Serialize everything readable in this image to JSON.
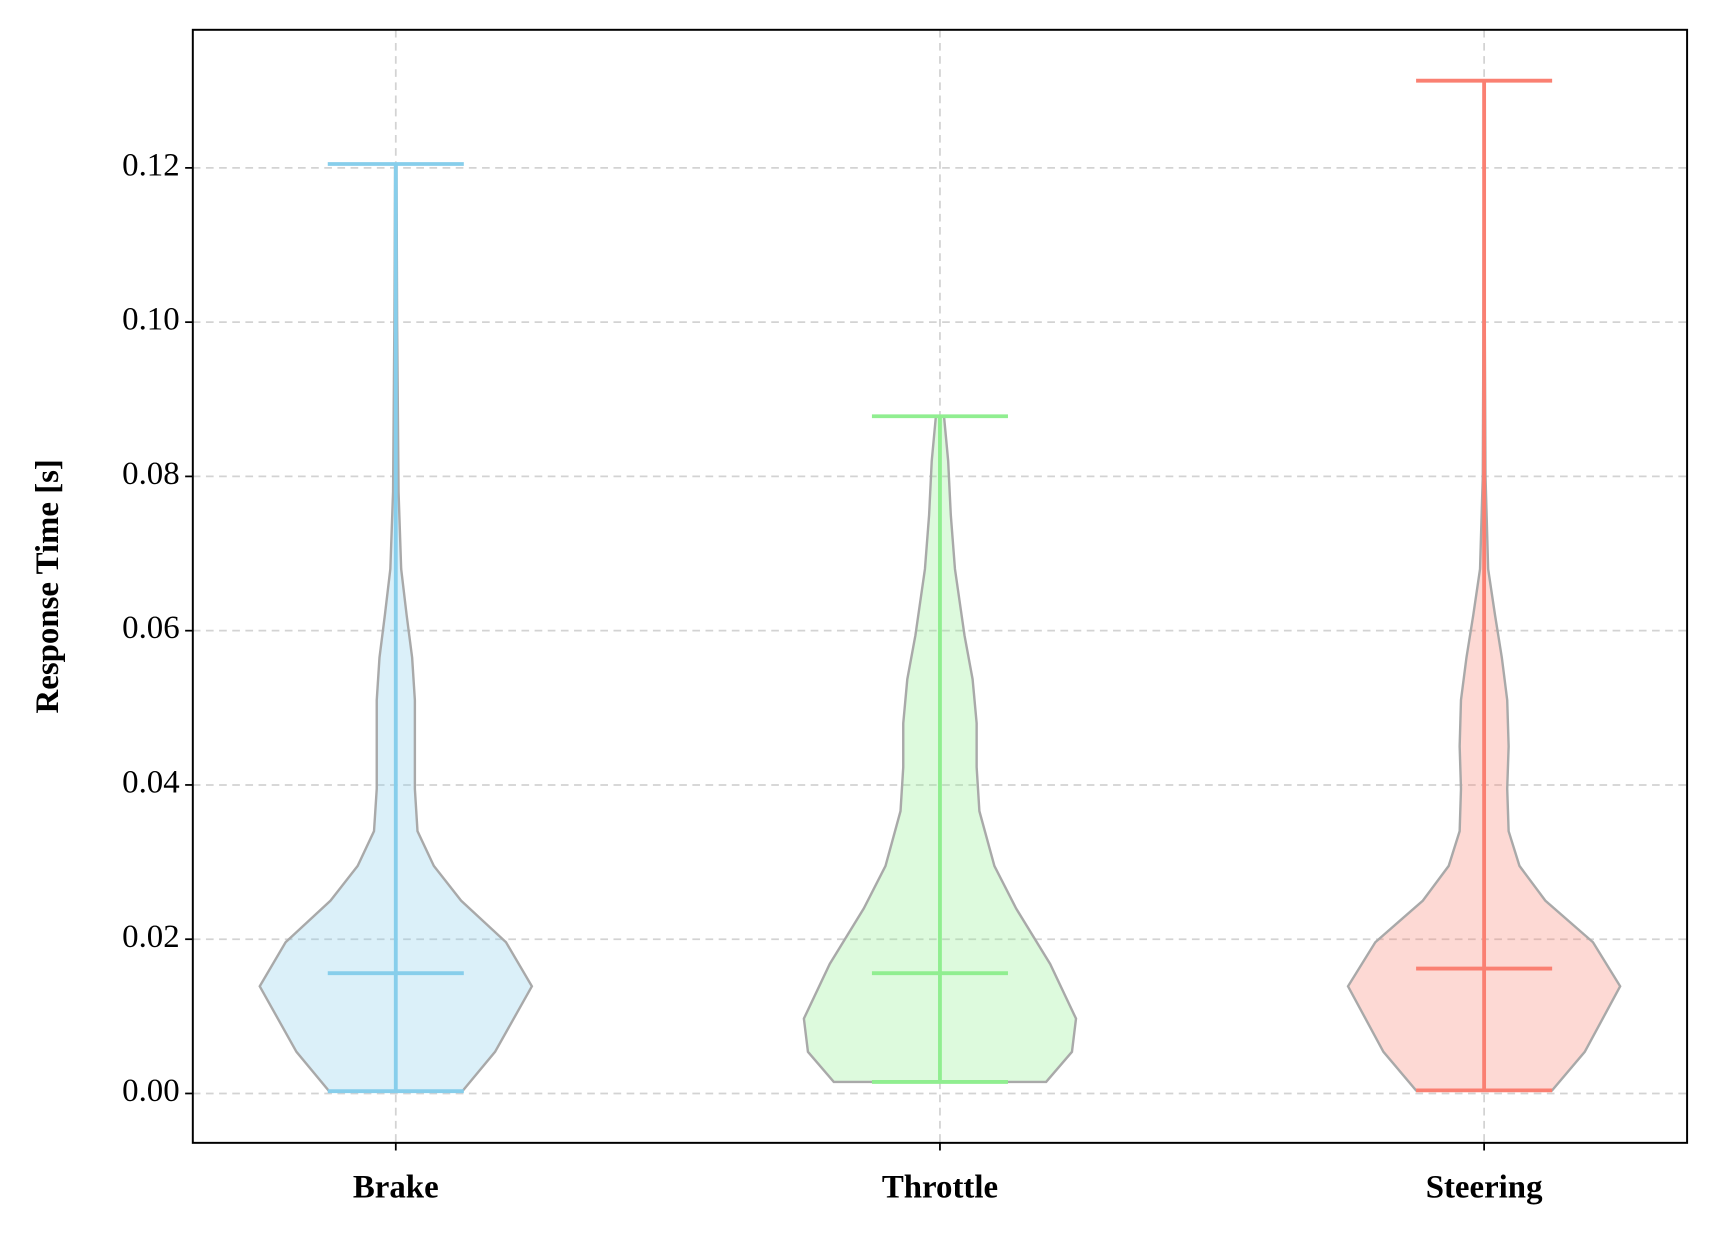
{
  "chart_data": {
    "type": "violin",
    "ylabel": "Response Time [s]",
    "categories": [
      "Brake",
      "Throttle",
      "Steering"
    ],
    "series": [
      {
        "name": "Brake",
        "color": "#87ceeb",
        "min": 0.0003,
        "median": 0.0156,
        "max": 0.1205,
        "density_y": [
          0.0003,
          0.0054,
          0.0139,
          0.0196,
          0.025,
          0.0295,
          0.034,
          0.0395,
          0.045,
          0.051,
          0.0565,
          0.062,
          0.068,
          0.078,
          0.1,
          0.1205
        ],
        "density_width": [
          0.49,
          0.73,
          1.0,
          0.81,
          0.48,
          0.28,
          0.16,
          0.14,
          0.14,
          0.14,
          0.12,
          0.08,
          0.04,
          0.02,
          0.01,
          0.005
        ]
      },
      {
        "name": "Throttle",
        "color": "#90ee90",
        "min": 0.0015,
        "median": 0.0156,
        "max": 0.0878,
        "density_y": [
          0.0015,
          0.0054,
          0.0097,
          0.0168,
          0.024,
          0.0295,
          0.0366,
          0.0423,
          0.048,
          0.0537,
          0.0594,
          0.068,
          0.075,
          0.082,
          0.0878
        ],
        "density_width": [
          0.78,
          0.97,
          1.0,
          0.81,
          0.56,
          0.4,
          0.29,
          0.27,
          0.27,
          0.24,
          0.18,
          0.11,
          0.08,
          0.06,
          0.03
        ]
      },
      {
        "name": "Steering",
        "color": "#fa8072",
        "min": 0.0004,
        "median": 0.0162,
        "max": 0.1313,
        "density_y": [
          0.0004,
          0.0054,
          0.0139,
          0.0196,
          0.025,
          0.0295,
          0.034,
          0.0395,
          0.045,
          0.051,
          0.0565,
          0.062,
          0.068,
          0.08,
          0.1,
          0.1313
        ],
        "density_width": [
          0.5,
          0.74,
          1.0,
          0.8,
          0.45,
          0.26,
          0.18,
          0.17,
          0.18,
          0.17,
          0.13,
          0.08,
          0.03,
          0.01,
          0.005,
          0.001
        ]
      }
    ],
    "body_edge_color": "#a9a9a9",
    "ylim": [
      -0.0064,
      0.1379
    ],
    "yticks": [
      {
        "value": 0,
        "label": "0.00"
      },
      {
        "value": 0.02,
        "label": "0.02"
      },
      {
        "value": 0.04,
        "label": "0.04"
      },
      {
        "value": 0.06,
        "label": "0.06"
      },
      {
        "value": 0.08,
        "label": "0.08"
      },
      {
        "value": 0.1,
        "label": "0.10"
      },
      {
        "value": 0.12,
        "label": "0.12"
      }
    ],
    "grid": true
  }
}
